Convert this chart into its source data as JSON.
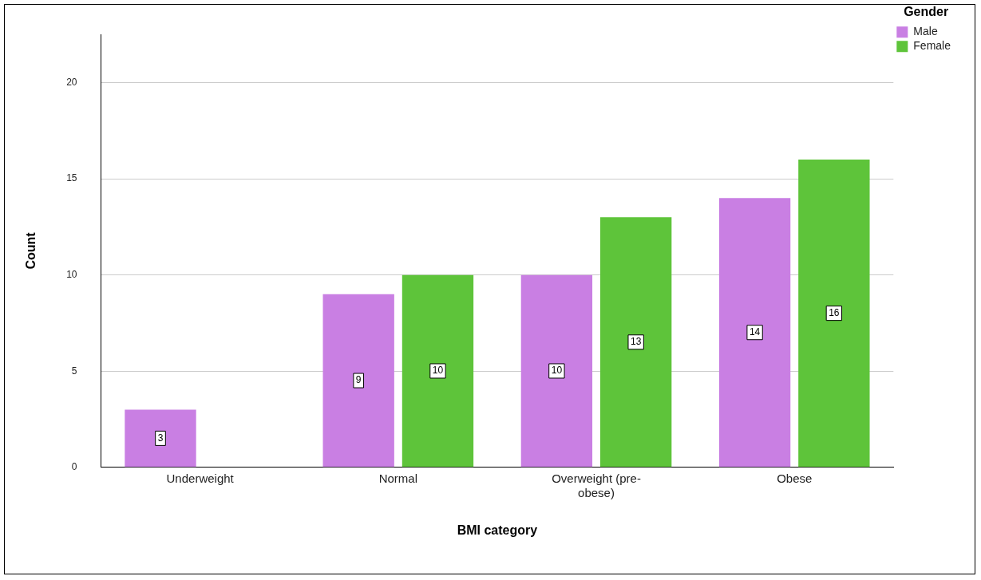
{
  "chart_data": {
    "type": "bar",
    "xlabel": "BMI category",
    "ylabel": "Count",
    "legend_title": "Gender",
    "categories": [
      "Underweight",
      "Normal",
      "Overweight (pre-obese)",
      "Obese"
    ],
    "series": [
      {
        "name": "Male",
        "color": "#c97fe3",
        "values": [
          3,
          9,
          10,
          14
        ]
      },
      {
        "name": "Female",
        "color": "#5ec43a",
        "values": [
          null,
          10,
          13,
          16
        ]
      }
    ],
    "ylim": [
      0,
      22.5
    ],
    "yticks": [
      0,
      5,
      10,
      15,
      20
    ],
    "grid": "y",
    "legend": "top right",
    "data_labels": true
  }
}
